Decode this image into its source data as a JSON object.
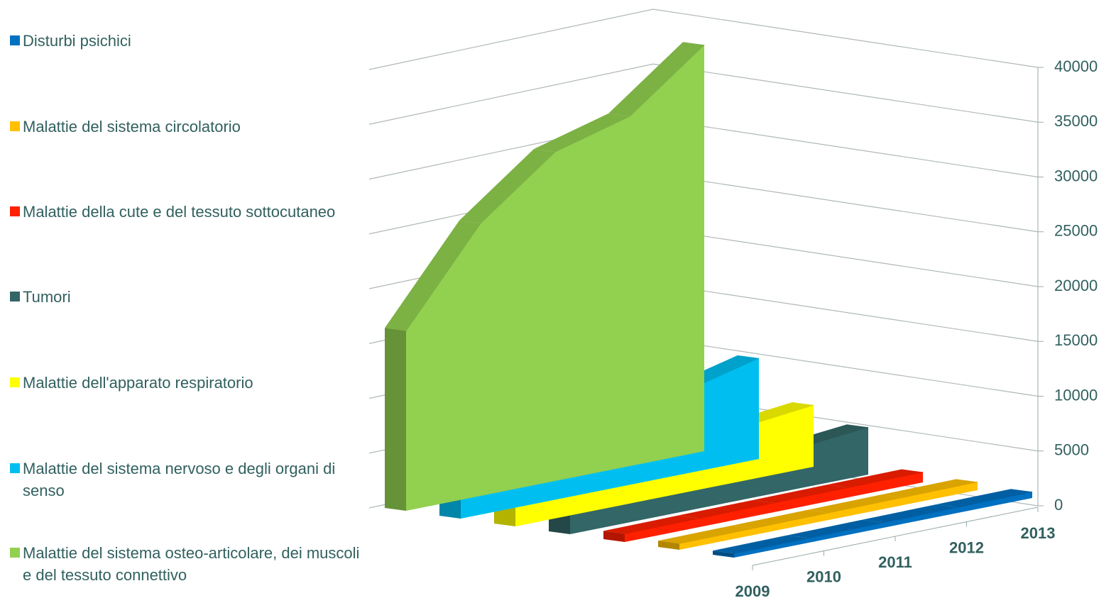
{
  "chart_data": {
    "type": "line3d",
    "categories": [
      "2009",
      "2010",
      "2011",
      "2012",
      "2013"
    ],
    "series": [
      {
        "name": "Disturbi psichici",
        "color": "#0070c0",
        "values": [
          400,
          450,
          500,
          550,
          600
        ]
      },
      {
        "name": "Malattie del sistema circolatorio",
        "color": "#ffc000",
        "values": [
          600,
          650,
          700,
          750,
          800
        ]
      },
      {
        "name": "Malattie della cute e del tessuto sottocutaneo",
        "color": "#ff2000",
        "values": [
          800,
          850,
          900,
          950,
          1000
        ]
      },
      {
        "name": "Tumori",
        "color": "#336666",
        "values": [
          2200,
          2800,
          3300,
          3900,
          4600
        ]
      },
      {
        "name": "Malattie dell'apparato respiratorio",
        "color": "#ffff00",
        "values": [
          3000,
          3900,
          4600,
          5200,
          6000
        ]
      },
      {
        "name": "Malattie del sistema nervoso e degli organi di senso",
        "color": "#00bff0",
        "values": [
          6500,
          7400,
          7800,
          8000,
          9800
        ]
      },
      {
        "name": "Malattie del sistema osteo-articolare, dei muscoli e del tessuto connettivo",
        "color": "#92d050",
        "values": [
          17500,
          26500,
          32000,
          34000,
          39500
        ]
      }
    ],
    "ylim": [
      0,
      40000
    ],
    "yticks": [
      0,
      5000,
      10000,
      15000,
      20000,
      25000,
      30000,
      35000,
      40000
    ],
    "grid": true,
    "legend": "left"
  }
}
